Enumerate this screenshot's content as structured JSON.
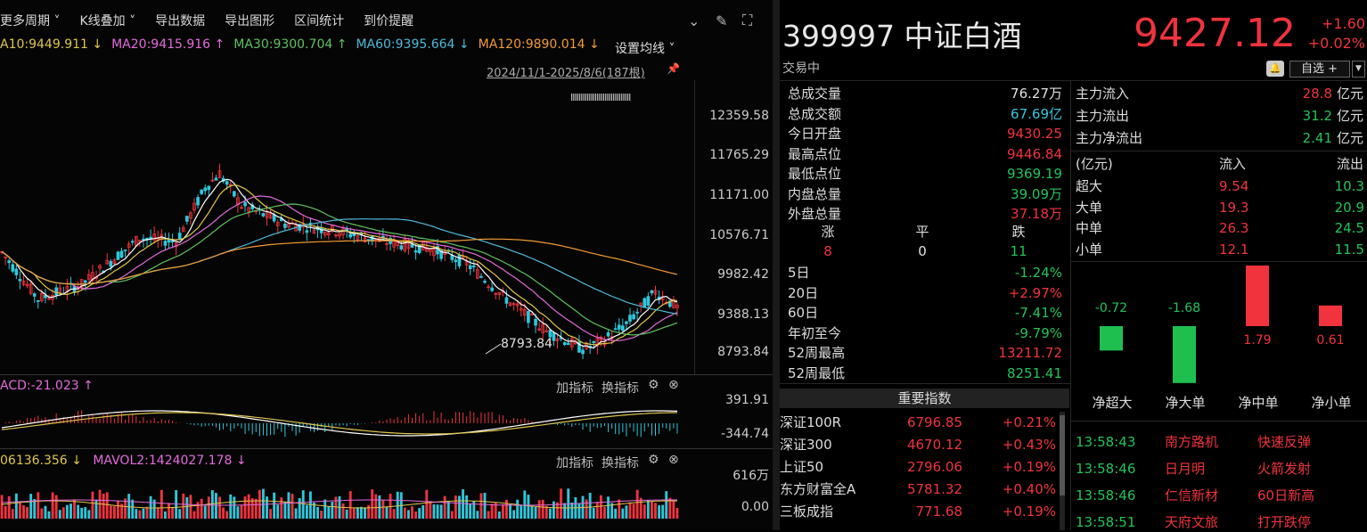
{
  "toolbar": {
    "items": [
      "更多周期 ˅",
      "K线叠加 ˅",
      "导出数据",
      "导出图形",
      "区间统计",
      "到价提醒"
    ]
  },
  "ma": {
    "items": [
      {
        "text": "A10:9449.911 ↓",
        "color": "#e0c64a"
      },
      {
        "text": "MA20:9415.916 ↑",
        "color": "#e46bdc"
      },
      {
        "text": "MA30:9300.704 ↑",
        "color": "#5ec25e"
      },
      {
        "text": "MA60:9395.664 ↓",
        "color": "#4dbad9"
      },
      {
        "text": "MA120:9890.014 ↓",
        "color": "#f29b34"
      }
    ],
    "setting": "设置均线 ˅",
    "range": "2024/11/1-2025/8/6(187根)",
    "hash": "IIIIIIIIIIIIIIIIIIIIIIIIIIIIII"
  },
  "price_axis": [
    "12359.58",
    "11765.29",
    "11171.00",
    "10576.71",
    "9982.42",
    "9388.13",
    "8793.84"
  ],
  "low_marker": "8793.84",
  "macd": {
    "label": "ACD:-21.023 ↑",
    "axis_top": "391.91",
    "axis_bottom": "-344.74",
    "tool1": "加指标",
    "tool2": "换指标"
  },
  "vol": {
    "label1": "06136.356 ↓",
    "label2": "MAVOL2:1424027.178 ↓",
    "axis_top": "616万",
    "axis_bottom": "0.00",
    "tool1": "加指标",
    "tool2": "换指标"
  },
  "quote": {
    "code_name": "399997 中证白酒",
    "price": "9427.12",
    "change": "+1.60",
    "change_pct": "+0.02%",
    "status": "交易中",
    "watch_label": "自选 +"
  },
  "stats": [
    {
      "label": "总成交量",
      "value": "76.27万",
      "color": "white"
    },
    {
      "label": "总成交额",
      "value": "67.69亿",
      "color": "cyan"
    },
    {
      "label": "今日开盘",
      "value": "9430.25",
      "color": "red"
    },
    {
      "label": "最高点位",
      "value": "9446.84",
      "color": "red"
    },
    {
      "label": "最低点位",
      "value": "9369.19",
      "color": "green"
    },
    {
      "label": "内盘总量",
      "value": "39.09万",
      "color": "green"
    },
    {
      "label": "外盘总量",
      "value": "37.18万",
      "color": "red"
    }
  ],
  "breadth": {
    "up_label": "涨",
    "flat_label": "平",
    "down_label": "跌",
    "up": "8",
    "flat": "0",
    "down": "11"
  },
  "perf": [
    {
      "label": "5日",
      "value": "-1.24%",
      "color": "green"
    },
    {
      "label": "20日",
      "value": "+2.97%",
      "color": "red"
    },
    {
      "label": "60日",
      "value": "-7.41%",
      "color": "green"
    },
    {
      "label": "年初至今",
      "value": "-9.79%",
      "color": "green"
    },
    {
      "label": "52周最高",
      "value": "13211.72",
      "color": "red"
    },
    {
      "label": "52周最低",
      "value": "8251.41",
      "color": "green"
    }
  ],
  "flow": {
    "inflow_label": "主力流入",
    "inflow": "28.8",
    "outflow_label": "主力流出",
    "outflow": "31.2",
    "net_label": "主力净流出",
    "net": "2.41",
    "unit": "亿元",
    "table_unit": "(亿元)",
    "col_in": "流入",
    "col_out": "流出",
    "rows": [
      {
        "label": "超大",
        "in": "9.54",
        "out": "10.3"
      },
      {
        "label": "大单",
        "in": "19.3",
        "out": "20.9"
      },
      {
        "label": "中单",
        "in": "26.3",
        "out": "24.5"
      },
      {
        "label": "小单",
        "in": "12.1",
        "out": "11.5"
      }
    ],
    "bars": [
      {
        "label": "净超大",
        "value": -0.72,
        "text": "-0.72"
      },
      {
        "label": "净大单",
        "value": -1.68,
        "text": "-1.68"
      },
      {
        "label": "净中单",
        "value": 1.79,
        "text": "1.79"
      },
      {
        "label": "净小单",
        "value": 0.61,
        "text": "0.61"
      }
    ]
  },
  "indices_header": "重要指数",
  "indices": [
    {
      "name": "深证100R",
      "value": "6796.85",
      "pct": "+0.21%"
    },
    {
      "name": "深证300",
      "value": "4670.12",
      "pct": "+0.43%"
    },
    {
      "name": "上证50",
      "value": "2796.06",
      "pct": "+0.19%"
    },
    {
      "name": "东方财富全A",
      "value": "5781.32",
      "pct": "+0.40%"
    },
    {
      "name": "三板成指",
      "value": "771.68",
      "pct": "+0.19%"
    }
  ],
  "alerts": [
    {
      "time": "13:58:43",
      "name": "南方路机",
      "event": "快速反弹"
    },
    {
      "time": "13:58:46",
      "name": "日月明",
      "event": "火箭发射"
    },
    {
      "time": "13:58:46",
      "name": "仁信新材",
      "event": "60日新高"
    },
    {
      "time": "13:58:51",
      "name": "天府文旅",
      "event": "打开跌停"
    }
  ],
  "colors": {
    "up": "#f0333d",
    "down": "#22c35a",
    "up_candle": "#f0333d",
    "down_candle": "#2ec8dc"
  }
}
